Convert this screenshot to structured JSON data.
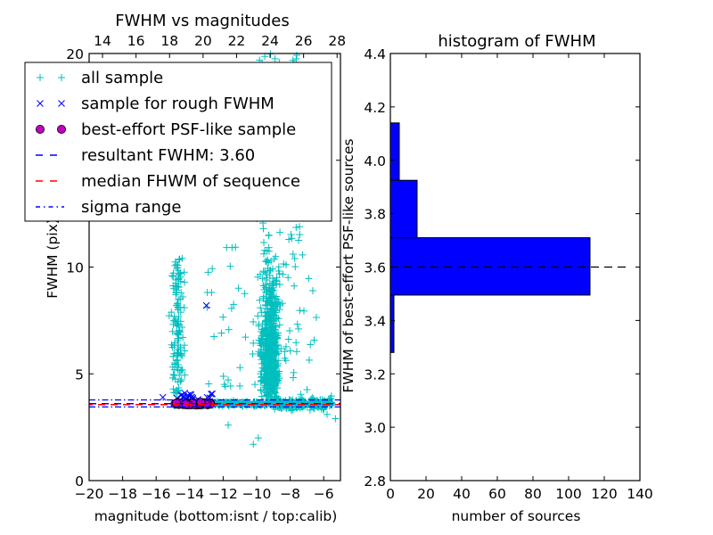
{
  "chart_data": [
    {
      "type": "scatter",
      "title": "FWHM vs magnitudes",
      "xlabel": "magnitude (bottom:isnt / top:calib)",
      "ylabel": "FWHM (pix)",
      "xlim": [
        -20,
        -5
      ],
      "ylim": [
        0,
        20
      ],
      "xticks": [
        "−20",
        "−18",
        "−16",
        "−14",
        "−12",
        "−10",
        "−8",
        "−6"
      ],
      "xtick_values": [
        -20,
        -18,
        -16,
        -14,
        -12,
        -10,
        -8,
        -6
      ],
      "yticks": [
        "0",
        "5",
        "10",
        "15",
        "20"
      ],
      "ytick_values": [
        0,
        5,
        10,
        15,
        20
      ],
      "top_axis": {
        "label_offset": 33.2,
        "ticks": [
          "14",
          "16",
          "18",
          "20",
          "22",
          "24",
          "26",
          "28"
        ],
        "tick_values": [
          14,
          16,
          18,
          20,
          22,
          24,
          26,
          28
        ]
      },
      "legend": {
        "placement": "top-left",
        "entries": [
          {
            "label": "all sample",
            "marker": "plus",
            "color": "#00bfbf"
          },
          {
            "label": "sample for rough FWHM",
            "marker": "x",
            "color": "#0000ff"
          },
          {
            "label": "best-effort PSF-like sample",
            "marker": "circle",
            "color": "#bf00bf"
          },
          {
            "label": "resultant FWHM: 3.60",
            "marker": "dashed-line",
            "color": "#0000ff"
          },
          {
            "label": "median FHWM of sequence",
            "marker": "dashed-line",
            "color": "#ff0000"
          },
          {
            "label": "sigma range",
            "marker": "dashdot-line",
            "color": "#0000ff"
          }
        ]
      },
      "series": [
        {
          "name": "all sample",
          "color": "#00bfbf",
          "marker": "plus"
        },
        {
          "name": "sample for rough FWHM",
          "color": "#0000ff",
          "marker": "x",
          "points": [
            [
              -15.6,
              3.9
            ],
            [
              -14.5,
              4.0
            ],
            [
              -14.3,
              4.1
            ],
            [
              -14.1,
              4.0
            ],
            [
              -13.9,
              3.9
            ],
            [
              -13.5,
              3.8
            ],
            [
              -13.0,
              8.2
            ],
            [
              -12.8,
              3.7
            ]
          ]
        },
        {
          "name": "best-effort PSF-like sample",
          "color": "#bf00bf",
          "marker": "circle",
          "x_range": [
            -15.0,
            -12.7
          ],
          "y_value": 3.6
        },
        {
          "name": "resultant FWHM",
          "color": "#0000ff",
          "style": "dashed",
          "y": 3.6
        },
        {
          "name": "median FHWM of sequence",
          "color": "#ff0000",
          "style": "dashed",
          "y": 3.6
        },
        {
          "name": "sigma range",
          "color": "#0000ff",
          "style": "dashdot",
          "y": [
            3.45,
            3.78
          ]
        }
      ]
    },
    {
      "type": "bar",
      "orientation": "horizontal",
      "title": "histogram of FWHM",
      "xlabel": "number of sources",
      "ylabel": "FWHM of best-effort PSF-like sources",
      "xlim": [
        0,
        140
      ],
      "ylim": [
        2.8,
        4.4
      ],
      "xticks": [
        "0",
        "20",
        "40",
        "60",
        "80",
        "100",
        "120",
        "140"
      ],
      "xtick_values": [
        0,
        20,
        40,
        60,
        80,
        100,
        120,
        140
      ],
      "yticks": [
        "2.8",
        "3.0",
        "3.2",
        "3.4",
        "3.6",
        "3.8",
        "4.0",
        "4.2",
        "4.4"
      ],
      "ytick_values": [
        2.8,
        3.0,
        3.2,
        3.4,
        3.6,
        3.8,
        4.0,
        4.2,
        4.4
      ],
      "bins": [
        {
          "from": 3.28,
          "to": 3.495,
          "count": 2
        },
        {
          "from": 3.495,
          "to": 3.71,
          "count": 112
        },
        {
          "from": 3.71,
          "to": 3.925,
          "count": 15
        },
        {
          "from": 3.925,
          "to": 4.14,
          "count": 5
        }
      ],
      "bar_color": "#0000ff",
      "reference_line": {
        "y": 3.6,
        "style": "dashed",
        "color": "#000000"
      }
    }
  ]
}
